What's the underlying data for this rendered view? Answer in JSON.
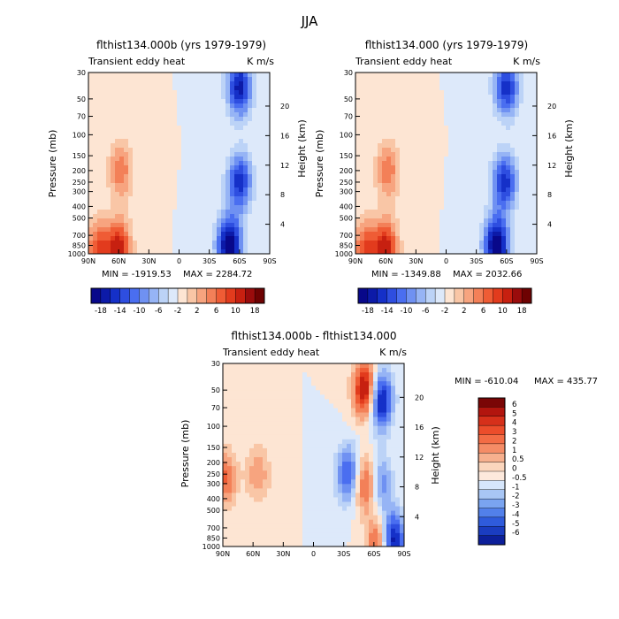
{
  "figure_title": "JJA",
  "chart_data": [
    {
      "type": "heatmap",
      "title": "flthist134.000b (yrs 1979-1979)",
      "subtitle_left": "Transient eddy heat",
      "subtitle_right": "K m/s",
      "ylabel": "Pressure (mb)",
      "ylabel_right": "Height (km)",
      "x_ticks": [
        "90N",
        "60N",
        "30N",
        "0",
        "30S",
        "60S",
        "90S"
      ],
      "x_values": [
        90,
        60,
        30,
        0,
        -30,
        -60,
        -90
      ],
      "y_ticks": [
        "30",
        "50",
        "70",
        "100",
        "150",
        "200",
        "250",
        "300",
        "400",
        "500",
        "700",
        "850",
        "1000"
      ],
      "y_values": [
        30,
        50,
        70,
        100,
        150,
        200,
        250,
        300,
        400,
        500,
        700,
        850,
        1000
      ],
      "ylim": [
        1000,
        30
      ],
      "y_right_ticks": [
        "20",
        "16",
        "12",
        "8",
        "4"
      ],
      "y_right_values": [
        20,
        16,
        12,
        8,
        4
      ],
      "min_label": "MIN = -1919.53",
      "max_label": "MAX = 2284.72",
      "levels": [
        -18,
        -16,
        -14,
        -12,
        -10,
        -8,
        -6,
        -4,
        -2,
        0,
        2,
        4,
        6,
        8,
        10,
        12,
        14,
        16,
        18
      ],
      "colorbar_labels": [
        "-18",
        "-14",
        "-10",
        "-6",
        "-2",
        "2",
        "6",
        "10",
        "18"
      ],
      "features": [
        {
          "lat": 58,
          "p": 200,
          "value": 8
        },
        {
          "lat": 60,
          "p": 900,
          "value": 14
        },
        {
          "lat": 80,
          "p": 900,
          "value": 10
        },
        {
          "lat": -50,
          "p": 850,
          "value": -20
        },
        {
          "lat": -60,
          "p": 250,
          "value": -14
        },
        {
          "lat": -60,
          "p": 40,
          "value": -16
        }
      ]
    },
    {
      "type": "heatmap",
      "title": "flthist134.000 (yrs 1979-1979)",
      "subtitle_left": "Transient eddy heat",
      "subtitle_right": "K m/s",
      "ylabel": "Pressure (mb)",
      "ylabel_right": "Height (km)",
      "x_ticks": [
        "90N",
        "60N",
        "30N",
        "0",
        "30S",
        "60S",
        "90S"
      ],
      "x_values": [
        90,
        60,
        30,
        0,
        -30,
        -60,
        -90
      ],
      "y_ticks": [
        "30",
        "50",
        "70",
        "100",
        "150",
        "200",
        "250",
        "300",
        "400",
        "500",
        "700",
        "850",
        "1000"
      ],
      "y_values": [
        30,
        50,
        70,
        100,
        150,
        200,
        250,
        300,
        400,
        500,
        700,
        850,
        1000
      ],
      "ylim": [
        1000,
        30
      ],
      "y_right_ticks": [
        "20",
        "16",
        "12",
        "8",
        "4"
      ],
      "y_right_values": [
        20,
        16,
        12,
        8,
        4
      ],
      "min_label": "MIN = -1349.88",
      "max_label": "MAX = 2032.66",
      "levels": [
        -18,
        -16,
        -14,
        -12,
        -10,
        -8,
        -6,
        -4,
        -2,
        0,
        2,
        4,
        6,
        8,
        10,
        12,
        14,
        16,
        18
      ],
      "colorbar_labels": [
        "-18",
        "-14",
        "-10",
        "-6",
        "-2",
        "2",
        "6",
        "10",
        "18"
      ],
      "features": [
        {
          "lat": 58,
          "p": 200,
          "value": 8
        },
        {
          "lat": 60,
          "p": 900,
          "value": 14
        },
        {
          "lat": 80,
          "p": 900,
          "value": 10
        },
        {
          "lat": -50,
          "p": 850,
          "value": -20
        },
        {
          "lat": -58,
          "p": 250,
          "value": -14
        },
        {
          "lat": -60,
          "p": 40,
          "value": -14
        }
      ]
    },
    {
      "type": "heatmap",
      "title": "flthist134.000b - flthist134.000",
      "subtitle_left": "Transient eddy heat",
      "subtitle_right": "K m/s",
      "ylabel": "Pressure (mb)",
      "ylabel_right": "Height (km)",
      "x_ticks": [
        "90N",
        "60N",
        "30N",
        "0",
        "30S",
        "60S",
        "90S"
      ],
      "x_values": [
        90,
        60,
        30,
        0,
        -30,
        -60,
        -90
      ],
      "y_ticks": [
        "30",
        "50",
        "70",
        "100",
        "150",
        "200",
        "250",
        "300",
        "400",
        "500",
        "700",
        "850",
        "1000"
      ],
      "y_values": [
        30,
        50,
        70,
        100,
        150,
        200,
        250,
        300,
        400,
        500,
        700,
        850,
        1000
      ],
      "ylim": [
        1000,
        30
      ],
      "y_right_ticks": [
        "20",
        "16",
        "12",
        "8",
        "4"
      ],
      "y_right_values": [
        20,
        16,
        12,
        8,
        4
      ],
      "min_label": "MIN = -610.04",
      "max_label": "MAX = 435.77",
      "levels": [
        -6,
        -5,
        -4,
        -3,
        -2,
        -1,
        -0.5,
        0,
        0.5,
        1,
        2,
        3,
        4,
        5,
        6
      ],
      "colorbar_labels": [
        "6",
        "5",
        "4",
        "3",
        "2",
        "1",
        "0.5",
        "0",
        "-0.5",
        "-1",
        "-2",
        "-3",
        "-4",
        "-5",
        "-6"
      ],
      "features": [
        {
          "lat": -52,
          "p": 50,
          "value": 6
        },
        {
          "lat": -52,
          "p": 300,
          "value": 4
        },
        {
          "lat": -66,
          "p": 60,
          "value": -6
        },
        {
          "lat": -66,
          "p": 300,
          "value": -3
        },
        {
          "lat": -35,
          "p": 250,
          "value": -4
        },
        {
          "lat": -78,
          "p": 900,
          "value": -6
        },
        {
          "lat": -65,
          "p": 950,
          "value": 4
        },
        {
          "lat": 88,
          "p": 270,
          "value": 3
        },
        {
          "lat": 55,
          "p": 250,
          "value": 2
        }
      ]
    }
  ]
}
